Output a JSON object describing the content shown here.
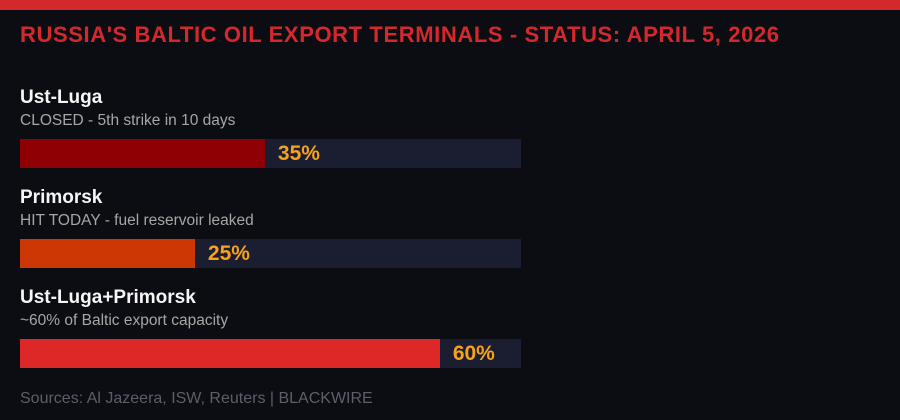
{
  "page": {
    "background_color": "#0c0d12",
    "accent_strip_color": "#d4282c"
  },
  "header": {
    "title": "RUSSIA'S BALTIC OIL EXPORT TERMINALS - STATUS: APRIL 5, 2026",
    "title_color": "#d4282c"
  },
  "chart_data": {
    "type": "bar",
    "orientation": "horizontal",
    "grid": false,
    "legend": false,
    "axis_max_pct": 71.6,
    "track_color": "#1b1d31",
    "value_label_color": "#f7a21b",
    "bars": [
      {
        "name": "Ust-Luga",
        "status": "CLOSED - 5th strike in 10 days",
        "value": 35,
        "value_label": "35%",
        "fill_color": "#8f0005"
      },
      {
        "name": "Primorsk",
        "status": "HIT TODAY - fuel reservoir leaked",
        "value": 25,
        "value_label": "25%",
        "fill_color": "#cc3703"
      },
      {
        "name": "Ust-Luga+Primorsk",
        "status": "~60% of Baltic export capacity",
        "value": 60,
        "value_label": "60%",
        "fill_color": "#de2727"
      }
    ]
  },
  "footer": {
    "sources": "Sources: Al Jazeera, ISW, Reuters | BLACKWIRE"
  }
}
